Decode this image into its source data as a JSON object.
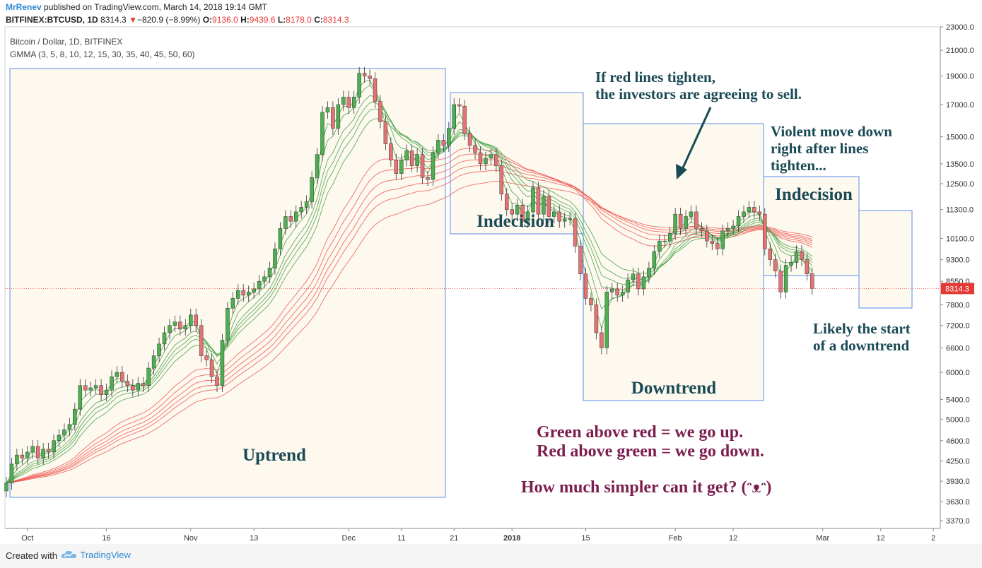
{
  "header": {
    "author": "MrRenev",
    "published": " published on TradingView.com, March 14, 2018 19:14 GMT",
    "symbol": "BITFINEX:BTCUSD, 1D",
    "last": "8314.3",
    "arrow": "▼",
    "change": "−820.9 (−8.99%)",
    "o_label": "O:",
    "o": "9136.0",
    "h_label": "H:",
    "h": "9439.6",
    "l_label": "L:",
    "l": "8178.0",
    "c_label": "C:",
    "c": "8314.3"
  },
  "legend": {
    "title": "Bitcoin / Dollar, 1D, BITFINEX",
    "indicator": "GMMA (3, 5, 8, 10, 12, 15, 30, 35, 40, 45, 50, 60)"
  },
  "footer": {
    "created": "Created with",
    "brand": "TradingView"
  },
  "colors": {
    "up": "#4caf50",
    "down": "#e57373",
    "green_ma": "#43a047",
    "red_ma": "#ef5350",
    "annotation": "#1a4a55",
    "purple": "#7b1e4e",
    "box": "#5b8def",
    "box_fill": "#fdf9ee"
  },
  "chart_data": {
    "type": "candlestick",
    "yscale": "log",
    "ylim": [
      3270,
      23000
    ],
    "y_ticks": [
      23000,
      21000,
      19000,
      17000,
      15000,
      13500,
      12500,
      11300,
      10100,
      9300,
      8550,
      7800,
      7200,
      6600,
      6000,
      5400,
      5000,
      4600,
      4250,
      3930,
      3630,
      3370
    ],
    "x_ticks": [
      {
        "label": "Oct",
        "day": 4
      },
      {
        "label": "16",
        "day": 19
      },
      {
        "label": "Nov",
        "day": 35
      },
      {
        "label": "13",
        "day": 47
      },
      {
        "label": "Dec",
        "day": 65
      },
      {
        "label": "11",
        "day": 75
      },
      {
        "label": "21",
        "day": 85
      },
      {
        "label": "2018",
        "day": 96
      },
      {
        "label": "15",
        "day": 110
      },
      {
        "label": "Feb",
        "day": 127
      },
      {
        "label": "12",
        "day": 138
      },
      {
        "label": "Mar",
        "day": 155
      },
      {
        "label": "12",
        "day": 166
      },
      {
        "label": "2",
        "day": 176
      }
    ],
    "last_price": 8314.3,
    "last_price_label": "8314.3",
    "closes": [
      3900,
      4200,
      4350,
      4300,
      4400,
      4500,
      4300,
      4450,
      4400,
      4600,
      4700,
      4800,
      4900,
      5200,
      5700,
      5600,
      5650,
      5700,
      5500,
      5600,
      5900,
      6000,
      5800,
      5700,
      5600,
      5750,
      5700,
      6100,
      6400,
      6700,
      7000,
      7200,
      7300,
      7100,
      7200,
      7500,
      7200,
      6400,
      6300,
      5900,
      5700,
      6800,
      7700,
      8000,
      8250,
      8100,
      8200,
      8300,
      8550,
      8700,
      9000,
      9700,
      10500,
      11000,
      10800,
      11200,
      11400,
      11650,
      12800,
      14000,
      16500,
      16800,
      15500,
      17000,
      17500,
      16800,
      17500,
      19200,
      19000,
      18800,
      17200,
      15900,
      14600,
      13700,
      13000,
      13700,
      14200,
      13400,
      14000,
      12800,
      12700,
      14100,
      14800,
      14500,
      15500,
      17000,
      16900,
      15200,
      14500,
      14100,
      13500,
      13800,
      14000,
      13400,
      12000,
      11300,
      11100,
      11500,
      10800,
      11200,
      12300,
      11100,
      11900,
      11000,
      11200,
      10800,
      10900,
      10900,
      9800,
      8800,
      8000,
      7800,
      7000,
      6600,
      8200,
      8300,
      8100,
      8200,
      8600,
      8800,
      8300,
      8700,
      9000,
      9600,
      10000,
      10000,
      10300,
      11100,
      10500,
      11000,
      11200,
      10500,
      10400,
      10000,
      9900,
      9700,
      10400,
      10500,
      10600,
      11000,
      11200,
      11400,
      11200,
      11100,
      9700,
      9300,
      8900,
      8200,
      9100,
      9200,
      9600,
      9300,
      8800,
      8314
    ],
    "annotations": [
      {
        "text": "Uptrend"
      },
      {
        "text": "Indecision"
      },
      {
        "text": "Downtrend"
      },
      {
        "text": "Indecision"
      },
      {
        "text": "If red lines tighten,"
      },
      {
        "text": "the investors are agreeing to sell."
      },
      {
        "text": "Violent move down"
      },
      {
        "text": "right after lines"
      },
      {
        "text": "tighten..."
      },
      {
        "text": "Likely the start"
      },
      {
        "text": "of a downtrend"
      },
      {
        "text": "Green above red = we go up."
      },
      {
        "text": "Red above green = we go down."
      },
      {
        "text": "How much simpler can it get? (ᵔᴥᵔ)"
      }
    ]
  }
}
